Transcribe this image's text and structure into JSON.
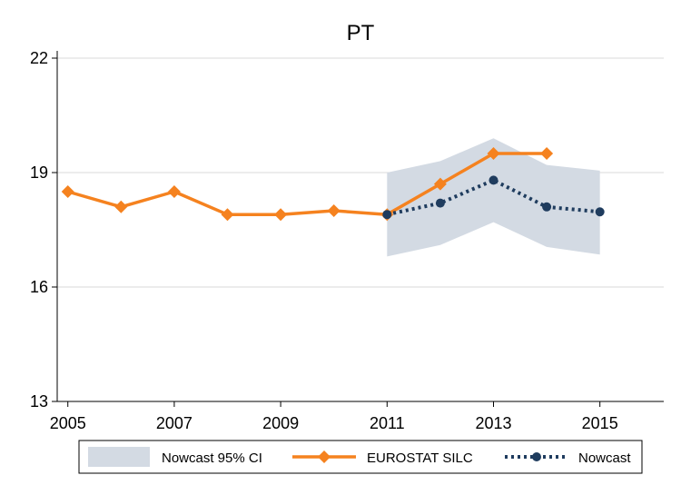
{
  "chart_data": {
    "type": "line",
    "title": "PT",
    "xlabel": "",
    "ylabel": "",
    "xlim": [
      2004.8,
      2016.2
    ],
    "ylim": [
      13,
      22
    ],
    "x_ticks": [
      2005,
      2007,
      2009,
      2011,
      2013,
      2015
    ],
    "y_ticks": [
      13,
      16,
      19,
      22
    ],
    "grid": "horizontal",
    "legend_position": "bottom",
    "series": [
      {
        "name": "Nowcast 95% CI",
        "kind": "band",
        "color": "#d3dae3",
        "x": [
          2011,
          2012,
          2013,
          2014,
          2015
        ],
        "lower": [
          16.8,
          17.1,
          17.7,
          17.05,
          16.85
        ],
        "upper": [
          19.0,
          19.3,
          19.9,
          19.2,
          19.05
        ]
      },
      {
        "name": "EUROSTAT SILC",
        "kind": "line",
        "style": "solid",
        "marker": "diamond",
        "color": "#f5821f",
        "x": [
          2005,
          2006,
          2007,
          2008,
          2009,
          2010,
          2011,
          2012,
          2013,
          2014
        ],
        "values": [
          18.5,
          18.1,
          18.5,
          17.9,
          17.9,
          18.0,
          17.9,
          18.7,
          19.5,
          19.5
        ]
      },
      {
        "name": "Nowcast",
        "kind": "line",
        "style": "dotted",
        "marker": "circle",
        "color": "#1f3c5e",
        "x": [
          2011,
          2012,
          2013,
          2014,
          2015
        ],
        "values": [
          17.9,
          18.2,
          18.8,
          18.1,
          17.97
        ]
      }
    ]
  }
}
